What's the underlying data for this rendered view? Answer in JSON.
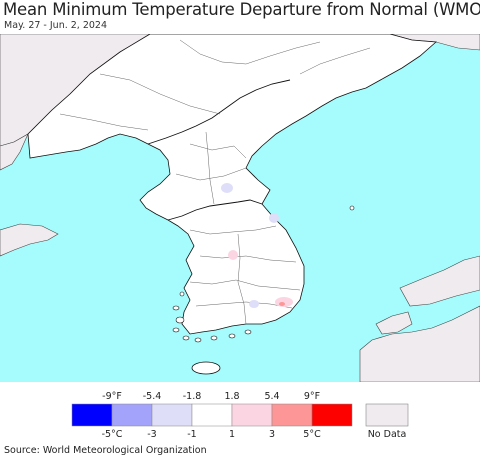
{
  "title": "Mean Minimum Temperature Departure from Normal (WMO)",
  "subtitle": "May. 27 - Jun. 2, 2024",
  "source": "Source: World Meteorological Organization",
  "colors": {
    "sea": "#a6fcfc",
    "land": "#ffffff",
    "no_data_land": "#efebef",
    "border": "#000000",
    "province": "#666666"
  },
  "legend": {
    "fahrenheit_labels": [
      "-9°F",
      "-5.4",
      "-1.8",
      "1.8",
      "5.4",
      "9°F"
    ],
    "celsius_labels": [
      "-5°C",
      "-3",
      "-1",
      "1",
      "3",
      "5°C"
    ],
    "colors": [
      "#0000fe",
      "#a3a3fb",
      "#dedef8",
      "#ffffff",
      "#fcd5e3",
      "#fd9696",
      "#fd0000"
    ],
    "no_data_label": "No Data",
    "no_data_color": "#efebef"
  }
}
